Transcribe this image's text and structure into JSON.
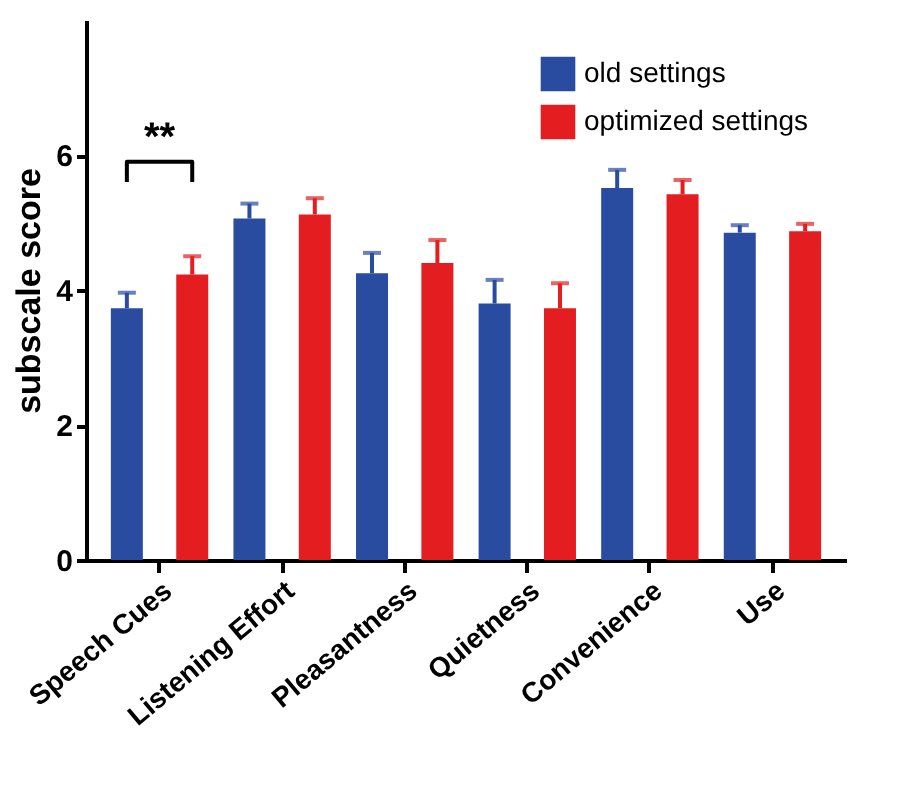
{
  "chart_data": {
    "type": "bar",
    "ylabel": "subscale score",
    "categories": [
      "Speech Cues",
      "Listening Effort",
      "Pleasantness",
      "Quietness",
      "Convenience",
      "Use"
    ],
    "series": [
      {
        "name": "old settings",
        "color": "#2a4ca0",
        "values": [
          3.73,
          5.06,
          4.25,
          3.8,
          5.51,
          4.85
        ],
        "errors": [
          [
            3.73,
            3.96
          ],
          [
            5.06,
            5.28
          ],
          [
            4.25,
            4.55
          ],
          [
            3.8,
            4.15
          ],
          [
            5.51,
            5.78
          ],
          [
            4.85,
            4.96
          ]
        ]
      },
      {
        "name": "optimized settings",
        "color": "#e41e20",
        "values": [
          4.23,
          5.12,
          4.4,
          3.73,
          5.42,
          4.87
        ],
        "errors": [
          [
            4.23,
            4.5
          ],
          [
            5.12,
            5.36
          ],
          [
            4.4,
            4.74
          ],
          [
            3.73,
            4.1
          ],
          [
            5.42,
            5.63
          ],
          [
            4.87,
            4.98
          ]
        ]
      }
    ],
    "ylim": [
      0,
      8
    ],
    "yticks": [
      0,
      2,
      4,
      6
    ],
    "grid": false,
    "legend": "top right",
    "annotations": [
      "**"
    ]
  }
}
